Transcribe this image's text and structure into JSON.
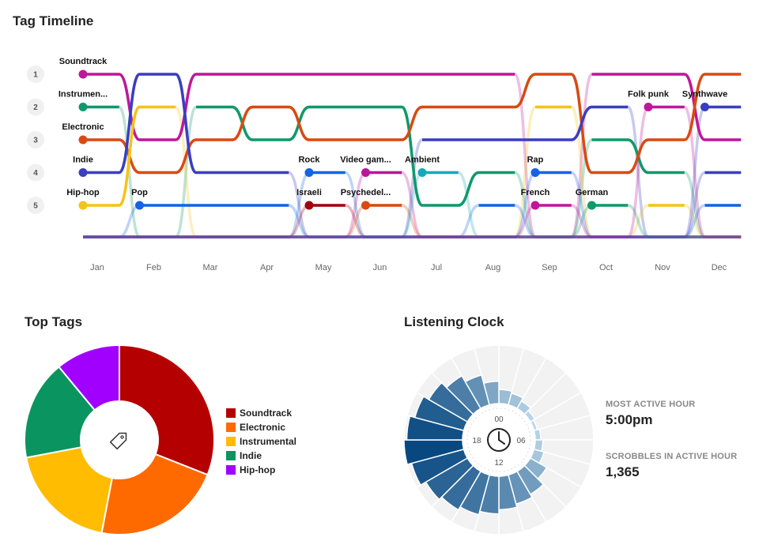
{
  "timeline": {
    "title": "Tag Timeline",
    "ranks": [
      "1",
      "2",
      "3",
      "4",
      "5"
    ],
    "months": [
      "Jan",
      "Feb",
      "Mar",
      "Apr",
      "May",
      "Jun",
      "Jul",
      "Aug",
      "Sep",
      "Oct",
      "Nov",
      "Dec"
    ]
  },
  "top_tags": {
    "title": "Top Tags",
    "center_icon": "tag-icon"
  },
  "clock": {
    "title": "Listening Clock",
    "hour_labels": {
      "top": "00",
      "right": "06",
      "bottom": "12",
      "left": "18"
    },
    "center_icon": "clock-icon",
    "most_active_label": "MOST ACTIVE HOUR",
    "most_active_value": "5:00pm",
    "scrobbles_label": "SCROBBLES IN ACTIVE HOUR",
    "scrobbles_value": "1,365"
  },
  "chart_data": [
    {
      "type": "line",
      "title": "Tag Timeline",
      "subtype": "bump",
      "x": [
        "Jan",
        "Feb",
        "Mar",
        "Apr",
        "May",
        "Jun",
        "Jul",
        "Aug",
        "Sep",
        "Oct",
        "Nov",
        "Dec"
      ],
      "y_axis": "rank",
      "ylim": [
        1,
        5
      ],
      "series": [
        {
          "name": "Soundtrack",
          "color": "#c0179a",
          "ranks": [
            1,
            3,
            1,
            1,
            1,
            1,
            1,
            1,
            null,
            1,
            1,
            3
          ]
        },
        {
          "name": "Instrumen...",
          "color": "#10996a",
          "ranks": [
            2,
            null,
            2,
            3,
            2,
            2,
            5,
            4,
            null,
            3,
            4,
            null
          ]
        },
        {
          "name": "Electronic",
          "color": "#d94a12",
          "ranks": [
            3,
            4,
            3,
            2,
            3,
            3,
            2,
            2,
            1,
            4,
            3,
            1
          ]
        },
        {
          "name": "Indie",
          "color": "#3b3ec0",
          "ranks": [
            4,
            1,
            4,
            4,
            null,
            null,
            3,
            3,
            3,
            2,
            null,
            4
          ]
        },
        {
          "name": "Hip-hop",
          "color": "#f5c318",
          "ranks": [
            5,
            2,
            null,
            null,
            null,
            null,
            null,
            null,
            2,
            null,
            5,
            null
          ]
        },
        {
          "name": "Pop",
          "color": "#1464e4",
          "ranks": [
            null,
            5,
            5,
            5,
            null,
            null,
            null,
            5,
            null,
            null,
            null,
            5
          ]
        },
        {
          "name": "Rock",
          "color": "#1464e4",
          "ranks": [
            null,
            null,
            null,
            null,
            4,
            null,
            null,
            null,
            null,
            null,
            null,
            null
          ]
        },
        {
          "name": "Israeli",
          "color": "#a3000e",
          "ranks": [
            null,
            null,
            null,
            null,
            5,
            null,
            null,
            null,
            null,
            null,
            null,
            null
          ]
        },
        {
          "name": "Video gam...",
          "color": "#b9179a",
          "ranks": [
            null,
            null,
            null,
            null,
            null,
            4,
            null,
            null,
            null,
            null,
            null,
            null
          ]
        },
        {
          "name": "Psychedel...",
          "color": "#d94a12",
          "ranks": [
            null,
            null,
            null,
            null,
            null,
            5,
            null,
            null,
            null,
            null,
            null,
            null
          ]
        },
        {
          "name": "Ambient",
          "color": "#15aab8",
          "ranks": [
            null,
            null,
            null,
            null,
            null,
            null,
            4,
            null,
            null,
            null,
            null,
            null
          ]
        },
        {
          "name": "Rap",
          "color": "#1464e4",
          "ranks": [
            null,
            null,
            null,
            null,
            null,
            null,
            null,
            null,
            4,
            null,
            null,
            null
          ]
        },
        {
          "name": "French",
          "color": "#c0179a",
          "ranks": [
            null,
            null,
            null,
            null,
            null,
            null,
            null,
            null,
            5,
            null,
            null,
            null
          ]
        },
        {
          "name": "German",
          "color": "#10996a",
          "ranks": [
            null,
            null,
            null,
            null,
            null,
            null,
            null,
            null,
            null,
            5,
            null,
            null
          ]
        },
        {
          "name": "Folk punk",
          "color": "#c0179a",
          "ranks": [
            null,
            null,
            null,
            null,
            null,
            null,
            null,
            null,
            null,
            null,
            2,
            null
          ]
        },
        {
          "name": "Synthwave",
          "color": "#3b3ec0",
          "ranks": [
            null,
            null,
            null,
            null,
            null,
            null,
            null,
            null,
            null,
            null,
            null,
            2
          ]
        }
      ]
    },
    {
      "type": "pie",
      "title": "Top Tags",
      "donut": true,
      "categories": [
        "Soundtrack",
        "Electronic",
        "Instrumental",
        "Indie",
        "Hip-hop"
      ],
      "values": [
        31,
        22,
        19,
        17,
        11
      ],
      "colors": [
        "#b50000",
        "#ff6a00",
        "#ffbc00",
        "#0a9560",
        "#a100ff"
      ],
      "legend": "right"
    },
    {
      "type": "bar",
      "subtype": "radial",
      "title": "Listening Clock",
      "categories": [
        "00",
        "01",
        "02",
        "03",
        "04",
        "05",
        "06",
        "07",
        "08",
        "09",
        "10",
        "11",
        "12",
        "13",
        "14",
        "15",
        "16",
        "17",
        "18",
        "19",
        "20",
        "21",
        "22",
        "23"
      ],
      "values": [
        330,
        280,
        200,
        120,
        80,
        130,
        180,
        240,
        440,
        620,
        700,
        780,
        880,
        960,
        1040,
        1120,
        1260,
        1365,
        1300,
        1180,
        1040,
        880,
        720,
        520
      ],
      "ylim": [
        0,
        1365
      ],
      "most_active_hour": "17"
    }
  ]
}
